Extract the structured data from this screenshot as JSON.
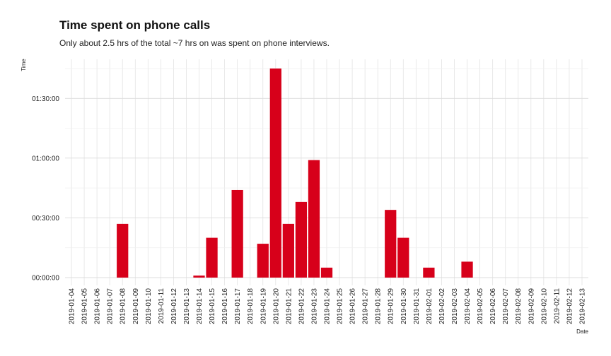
{
  "chart_data": {
    "type": "bar",
    "title": "Time spent on phone calls",
    "subtitle": "Only about 2.5 hrs of the total ~7 hrs on was spent on phone interviews.",
    "xlabel": "Date",
    "ylabel": "Time",
    "y_unit": "minutes",
    "ylim": [
      0,
      108
    ],
    "y_ticks": [
      {
        "value": 0,
        "label": "00:00:00"
      },
      {
        "value": 30,
        "label": "00:30:00"
      },
      {
        "value": 60,
        "label": "01:00:00"
      },
      {
        "value": 90,
        "label": "01:30:00"
      }
    ],
    "grid": true,
    "bar_color": "#D7001A",
    "categories": [
      "2019-01-04",
      "2019-01-05",
      "2019-01-06",
      "2019-01-07",
      "2019-01-08",
      "2019-01-09",
      "2019-01-10",
      "2019-01-11",
      "2019-01-12",
      "2019-01-13",
      "2019-01-14",
      "2019-01-15",
      "2019-01-16",
      "2019-01-17",
      "2019-01-18",
      "2019-01-19",
      "2019-01-20",
      "2019-01-21",
      "2019-01-22",
      "2019-01-23",
      "2019-01-24",
      "2019-01-25",
      "2019-01-26",
      "2019-01-27",
      "2019-01-28",
      "2019-01-29",
      "2019-01-30",
      "2019-01-31",
      "2019-02-01",
      "2019-02-02",
      "2019-02-03",
      "2019-02-04",
      "2019-02-05",
      "2019-02-06",
      "2019-02-07",
      "2019-02-08",
      "2019-02-09",
      "2019-02-10",
      "2019-02-11",
      "2019-02-12",
      "2019-02-13"
    ],
    "values": [
      0,
      0,
      0,
      0,
      27,
      0,
      0,
      0,
      0,
      0,
      1,
      20,
      0,
      44,
      0,
      17,
      105,
      27,
      38,
      59,
      5,
      0,
      0,
      0,
      0,
      34,
      20,
      0,
      5,
      0,
      0,
      8,
      0,
      0,
      0,
      0,
      0,
      0,
      0,
      0,
      0
    ]
  }
}
